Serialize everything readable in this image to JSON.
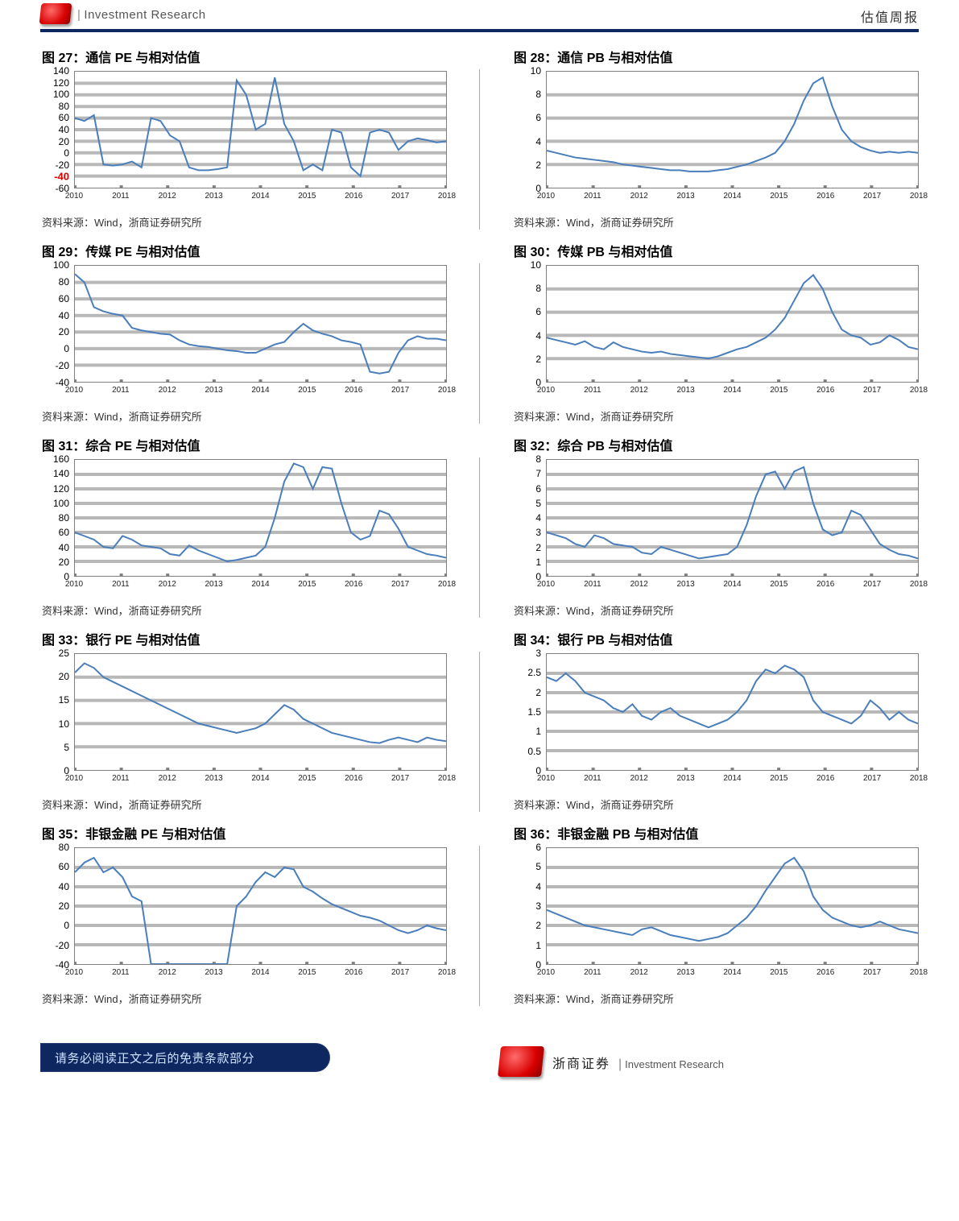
{
  "meta": {
    "line_color": "#4a7ebb",
    "grid_color": "#b8b8b8",
    "axis_color": "#7f7f7f",
    "highlight_color": "#d90000",
    "background_color": "#ffffff",
    "x_categories": [
      "2010",
      "2011",
      "2012",
      "2013",
      "2014",
      "2015",
      "2016",
      "2017",
      "2018"
    ]
  },
  "header": {
    "left": "Investment Research",
    "right": "估值周报"
  },
  "footer": {
    "page_tag": "请务必阅读正文之后的免责条款部分",
    "brand_cn": "浙商证券",
    "brand_en": "Investment Research"
  },
  "source_text": "资料来源：Wind，浙商证券研究所",
  "charts": [
    {
      "id": "c27",
      "title": "图 27：通信 PE 与相对估值",
      "ymin": -60,
      "ymax": 140,
      "ystep": 20,
      "highlight_tick": -40,
      "series": [
        60,
        55,
        65,
        -20,
        -22,
        -20,
        -15,
        -25,
        60,
        55,
        30,
        20,
        -25,
        -30,
        -30,
        -28,
        -25,
        125,
        100,
        40,
        50,
        130,
        50,
        20,
        -30,
        -20,
        -30,
        40,
        35,
        -25,
        -40,
        35,
        40,
        35,
        5,
        20,
        25,
        22,
        18,
        20
      ]
    },
    {
      "id": "c28",
      "title": "图 28：通信 PB 与相对估值",
      "ymin": 0,
      "ymax": 10,
      "ystep": 2,
      "series": [
        3.2,
        3.0,
        2.8,
        2.6,
        2.5,
        2.4,
        2.3,
        2.2,
        2.0,
        1.9,
        1.8,
        1.7,
        1.6,
        1.5,
        1.5,
        1.4,
        1.4,
        1.4,
        1.5,
        1.6,
        1.8,
        2.0,
        2.3,
        2.6,
        3.0,
        4.0,
        5.5,
        7.5,
        9.0,
        9.5,
        7.0,
        5.0,
        4.0,
        3.5,
        3.2,
        3.0,
        3.1,
        3.0,
        3.1,
        3.0
      ]
    },
    {
      "id": "c29",
      "title": "图 29：传媒 PE 与相对估值",
      "ymin": -40,
      "ymax": 100,
      "ystep": 20,
      "highlight_tick": -30,
      "series": [
        90,
        80,
        50,
        45,
        42,
        40,
        25,
        22,
        20,
        18,
        17,
        10,
        5,
        3,
        2,
        0,
        -2,
        -3,
        -5,
        -5,
        0,
        5,
        8,
        20,
        30,
        22,
        18,
        15,
        10,
        8,
        5,
        -28,
        -30,
        -28,
        -5,
        10,
        15,
        12,
        12,
        10
      ]
    },
    {
      "id": "c30",
      "title": "图 30：传媒 PB 与相对估值",
      "ymin": 0,
      "ymax": 10,
      "ystep": 2,
      "series": [
        3.8,
        3.6,
        3.4,
        3.2,
        3.5,
        3.0,
        2.8,
        3.4,
        3.0,
        2.8,
        2.6,
        2.5,
        2.6,
        2.4,
        2.3,
        2.2,
        2.1,
        2.0,
        2.2,
        2.5,
        2.8,
        3.0,
        3.4,
        3.8,
        4.5,
        5.5,
        7.0,
        8.5,
        9.2,
        8.0,
        6.0,
        4.5,
        4.0,
        3.8,
        3.2,
        3.4,
        4.0,
        3.6,
        3.0,
        2.8
      ]
    },
    {
      "id": "c31",
      "title": "图 31：综合 PE 与相对估值",
      "ymin": 0,
      "ymax": 160,
      "ystep": 20,
      "series": [
        60,
        55,
        50,
        40,
        38,
        55,
        50,
        42,
        40,
        38,
        30,
        28,
        42,
        35,
        30,
        25,
        20,
        22,
        25,
        28,
        40,
        80,
        130,
        155,
        150,
        120,
        150,
        148,
        100,
        60,
        50,
        55,
        90,
        85,
        65,
        40,
        35,
        30,
        28,
        25
      ]
    },
    {
      "id": "c32",
      "title": "图 32：综合 PB 与相对估值",
      "ymin": 0,
      "ymax": 8,
      "ystep": 1,
      "series": [
        3.0,
        2.8,
        2.6,
        2.2,
        2.0,
        2.8,
        2.6,
        2.2,
        2.1,
        2.0,
        1.6,
        1.5,
        2.0,
        1.8,
        1.6,
        1.4,
        1.2,
        1.3,
        1.4,
        1.5,
        2.0,
        3.5,
        5.5,
        7.0,
        7.2,
        6.0,
        7.2,
        7.5,
        5.0,
        3.2,
        2.8,
        3.0,
        4.5,
        4.2,
        3.2,
        2.2,
        1.8,
        1.5,
        1.4,
        1.2
      ]
    },
    {
      "id": "c33",
      "title": "图 33：银行 PE 与相对估值",
      "ymin": 0,
      "ymax": 25,
      "ystep": 5,
      "series": [
        21,
        23,
        22,
        20,
        19,
        18,
        17,
        16,
        15,
        14,
        13,
        12,
        11,
        10,
        9.5,
        9,
        8.5,
        8,
        8.5,
        9,
        10,
        12,
        14,
        13,
        11,
        10,
        9,
        8,
        7.5,
        7,
        6.5,
        6,
        5.8,
        6.5,
        7,
        6.5,
        6,
        7,
        6.5,
        6.2
      ]
    },
    {
      "id": "c34",
      "title": "图 34：银行 PB 与相对估值",
      "ymin": 0,
      "ymax": 3,
      "ystep": 0.5,
      "series": [
        2.4,
        2.3,
        2.5,
        2.3,
        2.0,
        1.9,
        1.8,
        1.6,
        1.5,
        1.7,
        1.4,
        1.3,
        1.5,
        1.6,
        1.4,
        1.3,
        1.2,
        1.1,
        1.2,
        1.3,
        1.5,
        1.8,
        2.3,
        2.6,
        2.5,
        2.7,
        2.6,
        2.4,
        1.8,
        1.5,
        1.4,
        1.3,
        1.2,
        1.4,
        1.8,
        1.6,
        1.3,
        1.5,
        1.3,
        1.2
      ]
    },
    {
      "id": "c35",
      "title": "图 35：非银金融 PE 与相对估值",
      "ymin": -40,
      "ymax": 80,
      "ystep": 20,
      "series": [
        55,
        65,
        70,
        55,
        60,
        50,
        30,
        25,
        -40,
        -40,
        -40,
        -40,
        -40,
        -40,
        -40,
        -40,
        -40,
        20,
        30,
        45,
        55,
        50,
        60,
        58,
        40,
        35,
        28,
        22,
        18,
        14,
        10,
        8,
        5,
        0,
        -5,
        -8,
        -5,
        0,
        -3,
        -5
      ]
    },
    {
      "id": "c36",
      "title": "图 36：非银金融 PB 与相对估值",
      "ymin": 0,
      "ymax": 6,
      "ystep": 1,
      "series": [
        2.8,
        2.6,
        2.4,
        2.2,
        2.0,
        1.9,
        1.8,
        1.7,
        1.6,
        1.5,
        1.8,
        1.9,
        1.7,
        1.5,
        1.4,
        1.3,
        1.2,
        1.3,
        1.4,
        1.6,
        2.0,
        2.4,
        3.0,
        3.8,
        4.5,
        5.2,
        5.5,
        4.8,
        3.5,
        2.8,
        2.4,
        2.2,
        2.0,
        1.9,
        2.0,
        2.2,
        2.0,
        1.8,
        1.7,
        1.6
      ]
    }
  ]
}
